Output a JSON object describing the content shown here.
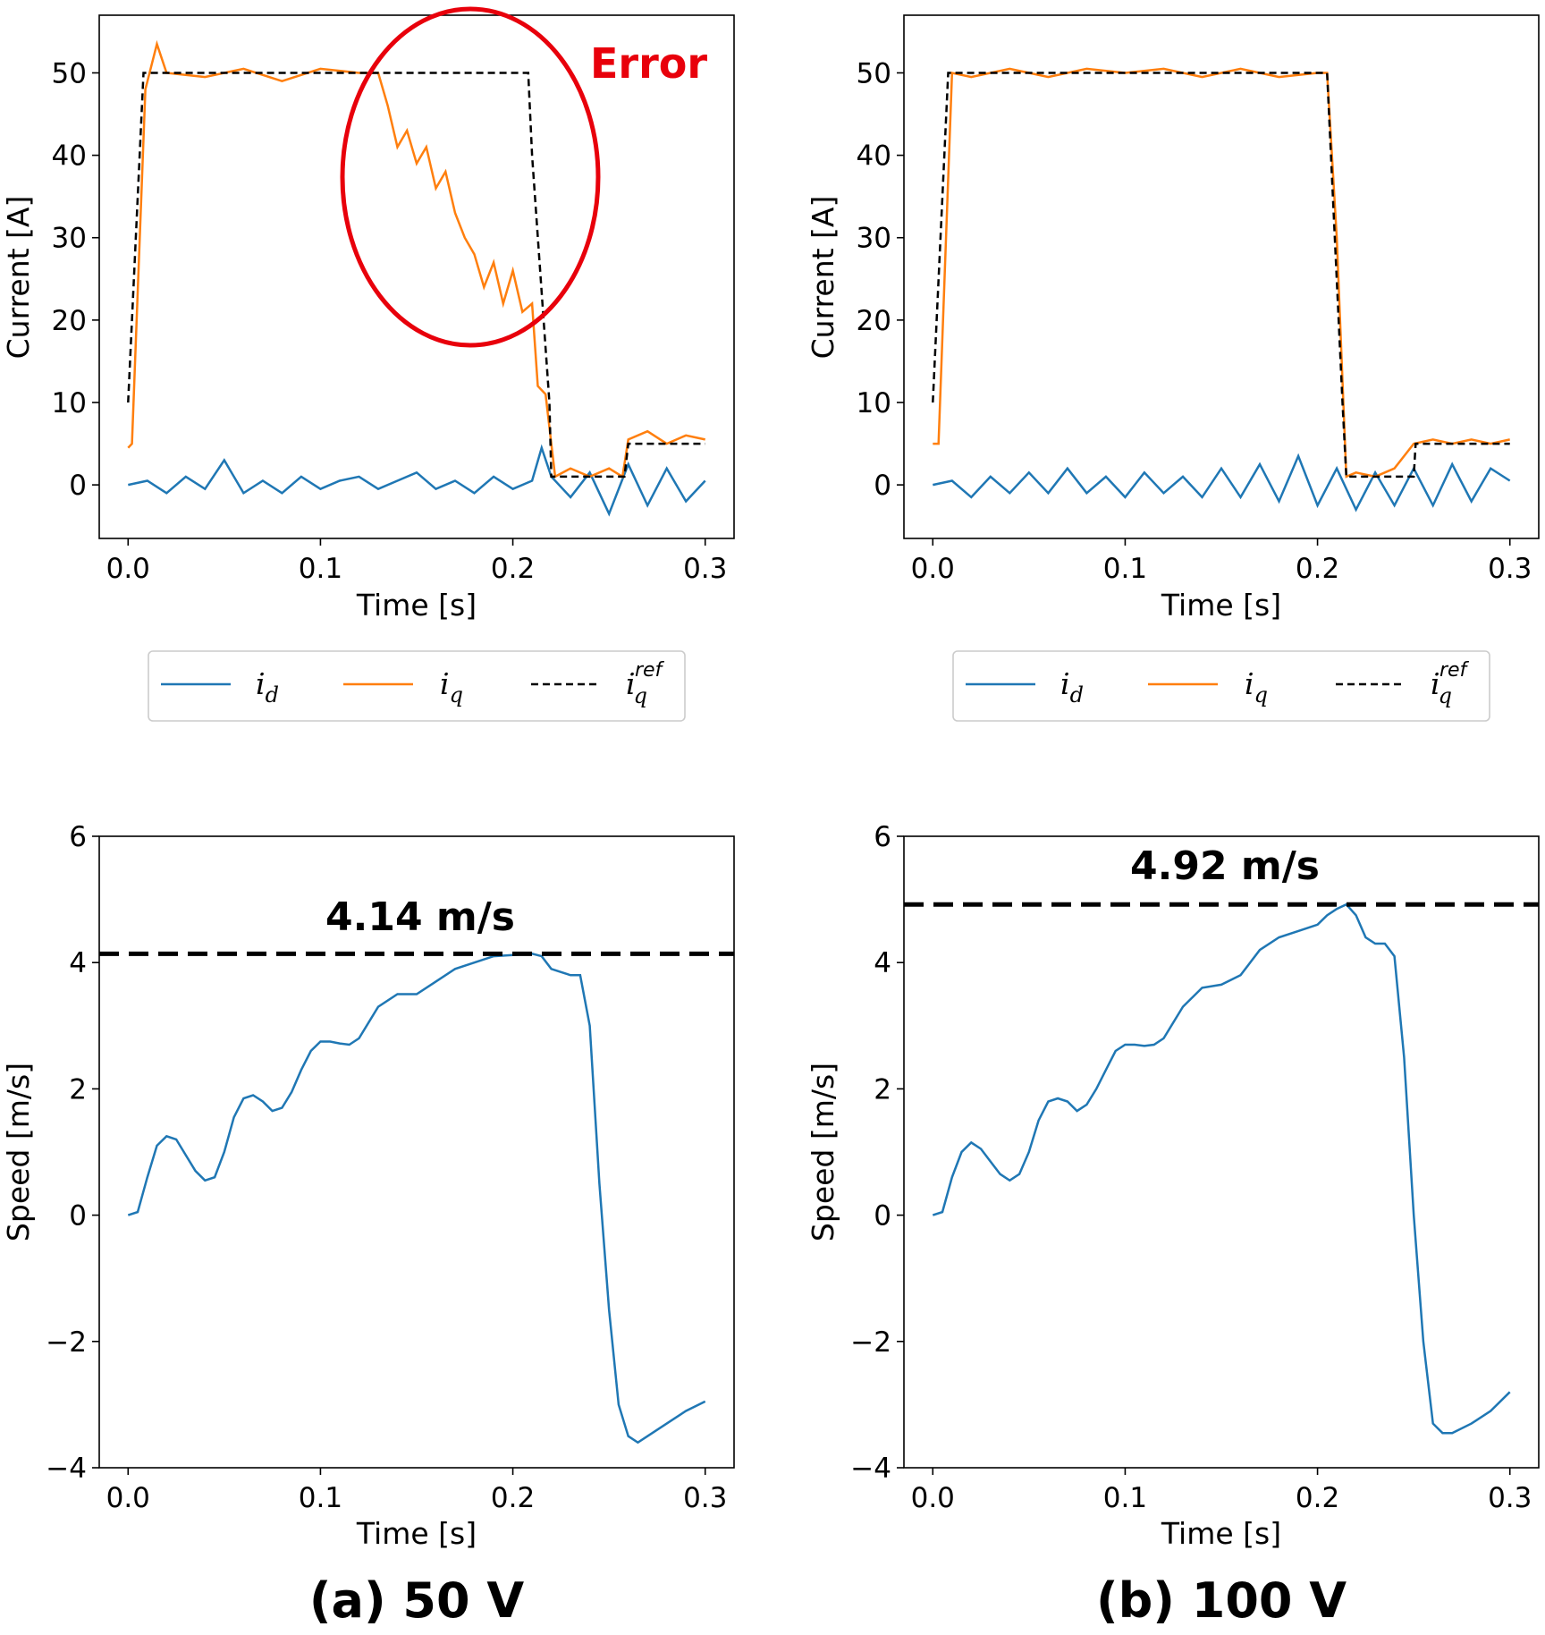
{
  "colors": {
    "id": "#1f77b4",
    "iq": "#ff7f0e",
    "ref": "#000000",
    "error": "#e8000b"
  },
  "panels": [
    {
      "caption": "(a) 50 V",
      "current": {
        "annotation": "Error",
        "x_ticks": [
          "0.0",
          "0.1",
          "0.2",
          "0.3"
        ],
        "y_ticks": [
          "0",
          "10",
          "20",
          "30",
          "40",
          "50"
        ],
        "legend": {
          "id": "i",
          "id_sub": "d",
          "iq": "i",
          "iq_sub": "q",
          "ref": "i",
          "ref_sub": "q",
          "ref_sup": "ref"
        }
      },
      "speed": {
        "annotation": "4.14 m/s",
        "x_ticks": [
          "0.0",
          "0.1",
          "0.2",
          "0.3"
        ],
        "y_ticks": [
          "−4",
          "−2",
          "0",
          "2",
          "4",
          "6"
        ]
      }
    },
    {
      "caption": "(b) 100 V",
      "current": {
        "x_ticks": [
          "0.0",
          "0.1",
          "0.2",
          "0.3"
        ],
        "y_ticks": [
          "0",
          "10",
          "20",
          "30",
          "40",
          "50"
        ],
        "legend": {
          "id": "i",
          "id_sub": "d",
          "iq": "i",
          "iq_sub": "q",
          "ref": "i",
          "ref_sub": "q",
          "ref_sup": "ref"
        }
      },
      "speed": {
        "annotation": "4.92 m/s",
        "x_ticks": [
          "0.0",
          "0.1",
          "0.2",
          "0.3"
        ],
        "y_ticks": [
          "−4",
          "−2",
          "0",
          "2",
          "4",
          "6"
        ]
      }
    }
  ],
  "chart_data": [
    {
      "type": "line",
      "xlabel": "Time [s]",
      "ylabel": "Current [A]",
      "xlim": [
        -0.015,
        0.315
      ],
      "ylim": [
        -6.5,
        57
      ],
      "series": [
        {
          "name": "i_d",
          "x": [
            0.0,
            0.01,
            0.02,
            0.03,
            0.04,
            0.05,
            0.06,
            0.07,
            0.08,
            0.09,
            0.1,
            0.11,
            0.12,
            0.13,
            0.14,
            0.15,
            0.16,
            0.17,
            0.18,
            0.19,
            0.2,
            0.21,
            0.215,
            0.22,
            0.23,
            0.24,
            0.25,
            0.26,
            0.27,
            0.28,
            0.29,
            0.3
          ],
          "y": [
            0,
            0.5,
            -1,
            1,
            -0.5,
            3,
            -1,
            0.5,
            -1,
            1,
            -0.5,
            0.5,
            1,
            -0.5,
            0.5,
            1.5,
            -0.5,
            0.5,
            -1,
            1,
            -0.5,
            0.5,
            4.5,
            1,
            -1.5,
            1.5,
            -3.5,
            2.5,
            -2.5,
            2,
            -2,
            0.5
          ]
        },
        {
          "name": "i_q",
          "x": [
            0.0,
            0.002,
            0.009,
            0.015,
            0.02,
            0.04,
            0.06,
            0.08,
            0.1,
            0.12,
            0.13,
            0.135,
            0.14,
            0.145,
            0.15,
            0.155,
            0.16,
            0.165,
            0.17,
            0.175,
            0.18,
            0.185,
            0.19,
            0.195,
            0.2,
            0.205,
            0.21,
            0.213,
            0.217,
            0.222,
            0.23,
            0.24,
            0.25,
            0.257,
            0.26,
            0.27,
            0.28,
            0.29,
            0.3
          ],
          "y": [
            4.5,
            5,
            48,
            53.5,
            50,
            49.5,
            50.5,
            49,
            50.5,
            50,
            50,
            46,
            41,
            43,
            39,
            41,
            36,
            38,
            33,
            30,
            28,
            24,
            27,
            22,
            26,
            21,
            22,
            12,
            11,
            1,
            2,
            1,
            2,
            1,
            5.5,
            6.5,
            5,
            6,
            5.5
          ]
        },
        {
          "name": "i_q^ref",
          "x": [
            0.0,
            0.008,
            0.208,
            0.21,
            0.216,
            0.219,
            0.22,
            0.258,
            0.26,
            0.3
          ],
          "y": [
            10,
            50,
            50,
            40,
            20,
            10,
            1,
            1,
            5,
            5
          ]
        }
      ]
    },
    {
      "type": "line",
      "xlabel": "Time [s]",
      "ylabel": "Current [A]",
      "xlim": [
        -0.015,
        0.315
      ],
      "ylim": [
        -6.5,
        57
      ],
      "series": [
        {
          "name": "i_d",
          "x": [
            0.0,
            0.01,
            0.02,
            0.03,
            0.04,
            0.05,
            0.06,
            0.07,
            0.08,
            0.09,
            0.1,
            0.11,
            0.12,
            0.13,
            0.14,
            0.15,
            0.16,
            0.17,
            0.18,
            0.19,
            0.2,
            0.21,
            0.22,
            0.23,
            0.24,
            0.25,
            0.26,
            0.27,
            0.28,
            0.29,
            0.3
          ],
          "y": [
            0,
            0.5,
            -1.5,
            1,
            -1,
            1.5,
            -1,
            2,
            -1,
            1,
            -1.5,
            1.5,
            -1,
            1,
            -1.5,
            2,
            -1.5,
            2.5,
            -2,
            3.5,
            -2.5,
            2,
            -3,
            1.5,
            -2.5,
            2,
            -2.5,
            2.5,
            -2,
            2,
            0.5
          ]
        },
        {
          "name": "i_q",
          "x": [
            0.0,
            0.003,
            0.01,
            0.02,
            0.04,
            0.06,
            0.08,
            0.1,
            0.12,
            0.14,
            0.16,
            0.18,
            0.2,
            0.205,
            0.21,
            0.215,
            0.22,
            0.23,
            0.24,
            0.25,
            0.26,
            0.27,
            0.28,
            0.29,
            0.3
          ],
          "y": [
            5,
            5,
            50,
            49.5,
            50.5,
            49.5,
            50.5,
            50,
            50.5,
            49.5,
            50.5,
            49.5,
            50,
            50,
            30,
            1,
            1.5,
            1,
            2,
            5,
            5.5,
            5,
            5.5,
            5,
            5.5
          ]
        },
        {
          "name": "i_q^ref",
          "x": [
            0.0,
            0.008,
            0.205,
            0.213,
            0.215,
            0.25,
            0.251,
            0.3
          ],
          "y": [
            10,
            50,
            50,
            10,
            1,
            1,
            5,
            5
          ]
        }
      ]
    },
    {
      "type": "line",
      "xlabel": "Time [s]",
      "ylabel": "Speed [m/s]",
      "xlim": [
        -0.015,
        0.315
      ],
      "ylim": [
        -4,
        6
      ],
      "series": [
        {
          "name": "speed",
          "x": [
            0.0,
            0.005,
            0.01,
            0.015,
            0.02,
            0.025,
            0.03,
            0.035,
            0.04,
            0.045,
            0.05,
            0.055,
            0.06,
            0.065,
            0.07,
            0.075,
            0.08,
            0.085,
            0.09,
            0.095,
            0.1,
            0.105,
            0.11,
            0.115,
            0.12,
            0.13,
            0.14,
            0.15,
            0.16,
            0.17,
            0.18,
            0.19,
            0.2,
            0.21,
            0.215,
            0.22,
            0.225,
            0.23,
            0.235,
            0.24,
            0.245,
            0.25,
            0.255,
            0.26,
            0.265,
            0.27,
            0.28,
            0.29,
            0.3
          ],
          "y": [
            0,
            0.05,
            0.6,
            1.1,
            1.25,
            1.2,
            0.95,
            0.7,
            0.55,
            0.6,
            1.0,
            1.55,
            1.85,
            1.9,
            1.8,
            1.65,
            1.7,
            1.95,
            2.3,
            2.6,
            2.75,
            2.75,
            2.72,
            2.7,
            2.8,
            3.3,
            3.5,
            3.5,
            3.7,
            3.9,
            4.0,
            4.1,
            4.12,
            4.14,
            4.1,
            3.9,
            3.85,
            3.8,
            3.8,
            3.0,
            0.5,
            -1.5,
            -3.0,
            -3.5,
            -3.6,
            -3.5,
            -3.3,
            -3.1,
            -2.95
          ]
        }
      ],
      "annotations": [
        "4.14 m/s"
      ],
      "reference_line": 4.14
    },
    {
      "type": "line",
      "xlabel": "Time [s]",
      "ylabel": "Speed [m/s]",
      "xlim": [
        -0.015,
        0.315
      ],
      "ylim": [
        -4,
        6
      ],
      "series": [
        {
          "name": "speed",
          "x": [
            0.0,
            0.005,
            0.01,
            0.015,
            0.02,
            0.025,
            0.03,
            0.035,
            0.04,
            0.045,
            0.05,
            0.055,
            0.06,
            0.065,
            0.07,
            0.075,
            0.08,
            0.085,
            0.09,
            0.095,
            0.1,
            0.105,
            0.11,
            0.115,
            0.12,
            0.13,
            0.14,
            0.15,
            0.16,
            0.17,
            0.18,
            0.19,
            0.2,
            0.205,
            0.21,
            0.215,
            0.22,
            0.225,
            0.23,
            0.235,
            0.24,
            0.245,
            0.25,
            0.255,
            0.26,
            0.265,
            0.27,
            0.28,
            0.29,
            0.3
          ],
          "y": [
            0,
            0.05,
            0.6,
            1.0,
            1.15,
            1.05,
            0.85,
            0.65,
            0.55,
            0.65,
            1.0,
            1.5,
            1.8,
            1.85,
            1.8,
            1.65,
            1.75,
            2.0,
            2.3,
            2.6,
            2.7,
            2.7,
            2.68,
            2.7,
            2.8,
            3.3,
            3.6,
            3.65,
            3.8,
            4.2,
            4.4,
            4.5,
            4.6,
            4.75,
            4.85,
            4.92,
            4.75,
            4.4,
            4.3,
            4.3,
            4.1,
            2.5,
            0.0,
            -2.0,
            -3.3,
            -3.45,
            -3.45,
            -3.3,
            -3.1,
            -2.8
          ]
        }
      ],
      "annotations": [
        "4.92 m/s"
      ],
      "reference_line": 4.92
    }
  ]
}
